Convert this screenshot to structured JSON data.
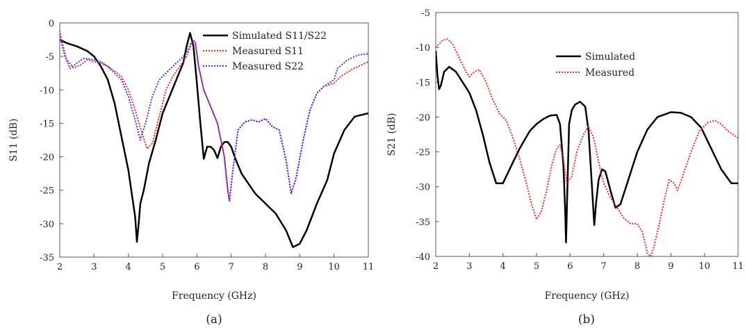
{
  "chart_data": [
    {
      "type": "line",
      "panel_label": "(a)",
      "xlabel": "Frequency (GHz)",
      "ylabel": "S11 (dB)",
      "xlim": [
        2,
        11
      ],
      "ylim": [
        -35,
        0
      ],
      "xticks": [
        2,
        3,
        4,
        5,
        6,
        7,
        8,
        9,
        10,
        11
      ],
      "yticks": [
        0,
        -5,
        -10,
        -15,
        -20,
        -25,
        -30,
        -35
      ],
      "grid": false,
      "legend_position": "top-right",
      "series": [
        {
          "name": "Simulated S11/S22",
          "color": "#000000",
          "style": "solid",
          "points": [
            [
              2.0,
              -2.5
            ],
            [
              2.2,
              -3.0
            ],
            [
              2.5,
              -3.5
            ],
            [
              2.8,
              -4.2
            ],
            [
              3.0,
              -5.0
            ],
            [
              3.2,
              -6.5
            ],
            [
              3.4,
              -8.5
            ],
            [
              3.6,
              -12.0
            ],
            [
              3.8,
              -17.0
            ],
            [
              4.0,
              -22.0
            ],
            [
              4.1,
              -25.5
            ],
            [
              4.2,
              -29.0
            ],
            [
              4.25,
              -32.7
            ],
            [
              4.3,
              -30.0
            ],
            [
              4.35,
              -27.0
            ],
            [
              4.45,
              -25.0
            ],
            [
              4.6,
              -21.0
            ],
            [
              4.8,
              -17.5
            ],
            [
              5.0,
              -13.5
            ],
            [
              5.2,
              -11.0
            ],
            [
              5.4,
              -8.5
            ],
            [
              5.6,
              -6.0
            ],
            [
              5.7,
              -3.5
            ],
            [
              5.8,
              -1.5
            ],
            [
              5.9,
              -3.5
            ],
            [
              6.0,
              -9.0
            ],
            [
              6.1,
              -15.0
            ],
            [
              6.2,
              -20.3
            ],
            [
              6.3,
              -18.5
            ],
            [
              6.4,
              -18.5
            ],
            [
              6.5,
              -19.0
            ],
            [
              6.6,
              -20.2
            ],
            [
              6.7,
              -18.5
            ],
            [
              6.8,
              -17.8
            ],
            [
              6.9,
              -17.8
            ],
            [
              7.0,
              -18.5
            ],
            [
              7.1,
              -20.0
            ],
            [
              7.3,
              -22.5
            ],
            [
              7.5,
              -24.0
            ],
            [
              7.7,
              -25.5
            ],
            [
              8.0,
              -27.0
            ],
            [
              8.3,
              -28.5
            ],
            [
              8.6,
              -31.0
            ],
            [
              8.8,
              -33.5
            ],
            [
              9.0,
              -33.0
            ],
            [
              9.2,
              -31.0
            ],
            [
              9.5,
              -27.0
            ],
            [
              9.8,
              -23.5
            ],
            [
              10.0,
              -19.5
            ],
            [
              10.3,
              -16.0
            ],
            [
              10.6,
              -14.0
            ],
            [
              11.0,
              -13.5
            ]
          ]
        },
        {
          "name": "Measured S11",
          "color": "#ff2020",
          "style": "dotted",
          "points": [
            [
              2.0,
              -1.2
            ],
            [
              2.1,
              -3.5
            ],
            [
              2.2,
              -5.5
            ],
            [
              2.4,
              -6.7
            ],
            [
              2.6,
              -6.3
            ],
            [
              2.8,
              -5.5
            ],
            [
              3.0,
              -5.8
            ],
            [
              3.2,
              -6.0
            ],
            [
              3.4,
              -6.5
            ],
            [
              3.6,
              -7.2
            ],
            [
              3.8,
              -8.0
            ],
            [
              4.0,
              -10.0
            ],
            [
              4.2,
              -13.0
            ],
            [
              4.4,
              -16.5
            ],
            [
              4.55,
              -18.8
            ],
            [
              4.7,
              -18.0
            ],
            [
              4.9,
              -14.0
            ],
            [
              5.1,
              -10.0
            ],
            [
              5.3,
              -8.0
            ],
            [
              5.5,
              -6.5
            ],
            [
              5.7,
              -5.0
            ],
            [
              5.85,
              -3.0
            ],
            [
              5.95,
              -3.0
            ],
            [
              6.05,
              -6.5
            ],
            [
              6.2,
              -10.0
            ],
            [
              6.4,
              -12.5
            ],
            [
              6.6,
              -15.0
            ],
            [
              6.8,
              -20.0
            ],
            [
              6.9,
              -25.0
            ],
            [
              6.95,
              -26.8
            ],
            [
              7.05,
              -22.0
            ],
            [
              7.2,
              -16.0
            ],
            [
              7.4,
              -14.8
            ],
            [
              7.6,
              -14.5
            ],
            [
              7.8,
              -14.8
            ],
            [
              8.0,
              -14.3
            ],
            [
              8.2,
              -15.5
            ],
            [
              8.4,
              -16.0
            ],
            [
              8.6,
              -20.5
            ],
            [
              8.75,
              -25.5
            ],
            [
              8.9,
              -23.0
            ],
            [
              9.1,
              -17.5
            ],
            [
              9.3,
              -13.0
            ],
            [
              9.5,
              -10.5
            ],
            [
              9.7,
              -9.5
            ],
            [
              10.0,
              -9.0
            ],
            [
              10.2,
              -8.0
            ],
            [
              10.5,
              -7.0
            ],
            [
              11.0,
              -5.8
            ]
          ]
        },
        {
          "name": "Measured S22",
          "color": "#3333ff",
          "style": "dotted",
          "points": [
            [
              2.0,
              -2.0
            ],
            [
              2.15,
              -5.0
            ],
            [
              2.3,
              -6.8
            ],
            [
              2.5,
              -6.0
            ],
            [
              2.7,
              -5.3
            ],
            [
              3.0,
              -5.5
            ],
            [
              3.2,
              -5.8
            ],
            [
              3.4,
              -6.5
            ],
            [
              3.6,
              -7.5
            ],
            [
              3.8,
              -8.5
            ],
            [
              4.0,
              -11.0
            ],
            [
              4.2,
              -14.5
            ],
            [
              4.35,
              -17.5
            ],
            [
              4.5,
              -15.0
            ],
            [
              4.7,
              -11.0
            ],
            [
              4.9,
              -8.5
            ],
            [
              5.1,
              -7.5
            ],
            [
              5.3,
              -6.5
            ],
            [
              5.5,
              -5.5
            ],
            [
              5.7,
              -4.5
            ],
            [
              5.85,
              -2.7
            ],
            [
              5.95,
              -2.7
            ],
            [
              6.05,
              -6.5
            ],
            [
              6.2,
              -10.0
            ],
            [
              6.4,
              -12.5
            ],
            [
              6.6,
              -15.0
            ],
            [
              6.8,
              -20.0
            ],
            [
              6.9,
              -25.0
            ],
            [
              6.95,
              -26.5
            ],
            [
              7.05,
              -22.0
            ],
            [
              7.2,
              -16.0
            ],
            [
              7.4,
              -14.8
            ],
            [
              7.6,
              -14.5
            ],
            [
              7.8,
              -14.8
            ],
            [
              8.0,
              -14.3
            ],
            [
              8.2,
              -15.5
            ],
            [
              8.4,
              -16.0
            ],
            [
              8.6,
              -20.5
            ],
            [
              8.75,
              -25.5
            ],
            [
              8.9,
              -23.0
            ],
            [
              9.1,
              -17.5
            ],
            [
              9.3,
              -13.0
            ],
            [
              9.5,
              -10.5
            ],
            [
              9.7,
              -9.5
            ],
            [
              10.0,
              -8.5
            ],
            [
              10.1,
              -6.8
            ],
            [
              10.4,
              -5.5
            ],
            [
              10.7,
              -4.8
            ],
            [
              11.0,
              -4.6
            ]
          ]
        }
      ]
    },
    {
      "type": "line",
      "panel_label": "(b)",
      "xlabel": "Frequency (GHz)",
      "ylabel": "S21 (dB)",
      "xlim": [
        2,
        11
      ],
      "ylim": [
        -40,
        -5
      ],
      "xticks": [
        2,
        3,
        4,
        5,
        6,
        7,
        8,
        9,
        10,
        11
      ],
      "yticks": [
        -5,
        -10,
        -15,
        -20,
        -25,
        -30,
        -35,
        -40
      ],
      "grid": false,
      "legend_position": "top-center",
      "series": [
        {
          "name": "Simulated",
          "color": "#000000",
          "style": "solid",
          "points": [
            [
              2.0,
              -10.5
            ],
            [
              2.05,
              -14.0
            ],
            [
              2.1,
              -16.0
            ],
            [
              2.15,
              -15.5
            ],
            [
              2.25,
              -13.5
            ],
            [
              2.4,
              -12.8
            ],
            [
              2.6,
              -13.5
            ],
            [
              2.8,
              -15.0
            ],
            [
              3.0,
              -16.5
            ],
            [
              3.2,
              -19.0
            ],
            [
              3.4,
              -22.5
            ],
            [
              3.6,
              -26.5
            ],
            [
              3.8,
              -29.5
            ],
            [
              4.0,
              -29.5
            ],
            [
              4.2,
              -27.5
            ],
            [
              4.5,
              -24.5
            ],
            [
              4.8,
              -22.0
            ],
            [
              5.0,
              -21.0
            ],
            [
              5.2,
              -20.3
            ],
            [
              5.4,
              -19.8
            ],
            [
              5.6,
              -19.7
            ],
            [
              5.7,
              -21.0
            ],
            [
              5.8,
              -27.0
            ],
            [
              5.85,
              -33.0
            ],
            [
              5.88,
              -38.0
            ],
            [
              5.92,
              -30.0
            ],
            [
              5.97,
              -21.0
            ],
            [
              6.05,
              -19.0
            ],
            [
              6.15,
              -18.2
            ],
            [
              6.3,
              -17.8
            ],
            [
              6.45,
              -18.5
            ],
            [
              6.55,
              -22.0
            ],
            [
              6.65,
              -30.0
            ],
            [
              6.72,
              -35.5
            ],
            [
              6.78,
              -32.0
            ],
            [
              6.85,
              -29.0
            ],
            [
              6.95,
              -27.5
            ],
            [
              7.05,
              -27.8
            ],
            [
              7.2,
              -30.5
            ],
            [
              7.35,
              -33.0
            ],
            [
              7.5,
              -32.5
            ],
            [
              7.7,
              -29.5
            ],
            [
              8.0,
              -25.0
            ],
            [
              8.3,
              -21.8
            ],
            [
              8.6,
              -20.0
            ],
            [
              9.0,
              -19.3
            ],
            [
              9.3,
              -19.4
            ],
            [
              9.6,
              -20.0
            ],
            [
              9.9,
              -21.5
            ],
            [
              10.2,
              -24.5
            ],
            [
              10.5,
              -27.5
            ],
            [
              10.8,
              -29.5
            ],
            [
              11.0,
              -29.5
            ]
          ]
        },
        {
          "name": "Measured",
          "color": "#ff2020",
          "style": "dotted",
          "points": [
            [
              2.0,
              -10.0
            ],
            [
              2.1,
              -9.5
            ],
            [
              2.2,
              -9.0
            ],
            [
              2.35,
              -8.8
            ],
            [
              2.5,
              -9.5
            ],
            [
              2.7,
              -11.5
            ],
            [
              2.9,
              -13.5
            ],
            [
              3.0,
              -14.2
            ],
            [
              3.15,
              -13.5
            ],
            [
              3.3,
              -13.2
            ],
            [
              3.5,
              -15.0
            ],
            [
              3.7,
              -17.5
            ],
            [
              3.9,
              -19.5
            ],
            [
              4.1,
              -20.5
            ],
            [
              4.3,
              -23.0
            ],
            [
              4.5,
              -26.0
            ],
            [
              4.7,
              -29.5
            ],
            [
              4.85,
              -32.5
            ],
            [
              5.0,
              -34.7
            ],
            [
              5.15,
              -33.5
            ],
            [
              5.3,
              -30.5
            ],
            [
              5.45,
              -27.0
            ],
            [
              5.6,
              -24.5
            ],
            [
              5.7,
              -24.0
            ],
            [
              5.8,
              -26.0
            ],
            [
              5.9,
              -29.5
            ],
            [
              6.05,
              -28.5
            ],
            [
              6.2,
              -25.0
            ],
            [
              6.4,
              -22.5
            ],
            [
              6.55,
              -21.3
            ],
            [
              6.7,
              -23.0
            ],
            [
              6.85,
              -26.5
            ],
            [
              7.0,
              -29.5
            ],
            [
              7.2,
              -31.5
            ],
            [
              7.4,
              -33.0
            ],
            [
              7.6,
              -34.5
            ],
            [
              7.8,
              -35.3
            ],
            [
              8.0,
              -35.3
            ],
            [
              8.15,
              -36.5
            ],
            [
              8.3,
              -39.5
            ],
            [
              8.4,
              -40.0
            ],
            [
              8.5,
              -38.5
            ],
            [
              8.65,
              -35.5
            ],
            [
              8.8,
              -32.0
            ],
            [
              8.95,
              -29.0
            ],
            [
              9.1,
              -29.5
            ],
            [
              9.2,
              -30.5
            ],
            [
              9.35,
              -28.5
            ],
            [
              9.6,
              -25.0
            ],
            [
              9.85,
              -22.0
            ],
            [
              10.1,
              -20.8
            ],
            [
              10.3,
              -20.5
            ],
            [
              10.5,
              -21.0
            ],
            [
              10.7,
              -22.0
            ],
            [
              11.0,
              -23.0
            ]
          ]
        }
      ]
    }
  ]
}
